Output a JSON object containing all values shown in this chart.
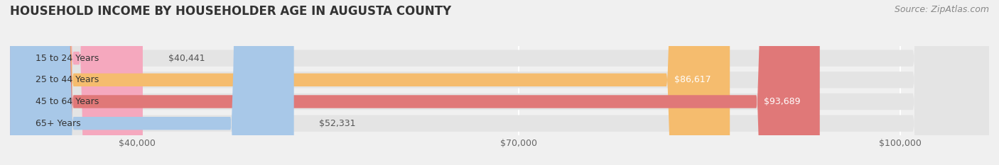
{
  "title": "HOUSEHOLD INCOME BY HOUSEHOLDER AGE IN AUGUSTA COUNTY",
  "source": "Source: ZipAtlas.com",
  "categories": [
    "15 to 24 Years",
    "25 to 44 Years",
    "45 to 64 Years",
    "65+ Years"
  ],
  "values": [
    40441,
    86617,
    93689,
    52331
  ],
  "bar_colors": [
    "#f5a8be",
    "#f5bc6e",
    "#e07878",
    "#a8c8e8"
  ],
  "labels": [
    "$40,441",
    "$86,617",
    "$93,689",
    "$52,331"
  ],
  "xmin": 30000,
  "xmax": 107000,
  "xticks": [
    40000,
    70000,
    100000
  ],
  "xticklabels": [
    "$40,000",
    "$70,000",
    "$100,000"
  ],
  "background_color": "#f0f0f0",
  "bar_background_color": "#e4e4e4",
  "title_fontsize": 12,
  "label_fontsize": 9,
  "source_fontsize": 9,
  "figwidth": 14.06,
  "figheight": 2.33
}
